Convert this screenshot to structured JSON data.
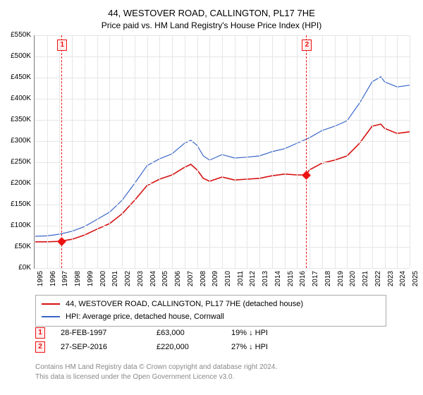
{
  "title_line1": "44, WESTOVER ROAD, CALLINGTON, PL17 7HE",
  "title_line2": "Price paid vs. HM Land Registry's House Price Index (HPI)",
  "chart": {
    "y": {
      "min": 0,
      "max": 550,
      "step": 50,
      "unit_prefix": "£",
      "unit_suffix": "K"
    },
    "x": {
      "min": 1995,
      "max": 2025,
      "step": 1
    },
    "grid_color": "#e6e6e6",
    "axis_color": "#888888",
    "series": [
      {
        "id": "subject",
        "color": "#d61111",
        "width": 1.6,
        "points": [
          [
            1995,
            62
          ],
          [
            1996,
            62
          ],
          [
            1997,
            63
          ],
          [
            1998,
            68
          ],
          [
            1999,
            78
          ],
          [
            2000,
            92
          ],
          [
            2001,
            105
          ],
          [
            2002,
            128
          ],
          [
            2003,
            160
          ],
          [
            2004,
            195
          ],
          [
            2005,
            210
          ],
          [
            2006,
            220
          ],
          [
            2007,
            238
          ],
          [
            2007.5,
            245
          ],
          [
            2008,
            232
          ],
          [
            2008.5,
            212
          ],
          [
            2009,
            205
          ],
          [
            2010,
            215
          ],
          [
            2011,
            208
          ],
          [
            2012,
            210
          ],
          [
            2013,
            212
          ],
          [
            2014,
            218
          ],
          [
            2015,
            222
          ],
          [
            2016,
            220
          ],
          [
            2016.7,
            220
          ],
          [
            2017,
            232
          ],
          [
            2018,
            248
          ],
          [
            2019,
            255
          ],
          [
            2020,
            265
          ],
          [
            2021,
            295
          ],
          [
            2022,
            335
          ],
          [
            2022.7,
            340
          ],
          [
            2023,
            330
          ],
          [
            2024,
            318
          ],
          [
            2025,
            322
          ]
        ]
      },
      {
        "id": "hpi",
        "color": "#3a66c8",
        "width": 1.2,
        "points": [
          [
            1995,
            75
          ],
          [
            1996,
            76
          ],
          [
            1997,
            80
          ],
          [
            1998,
            87
          ],
          [
            1999,
            98
          ],
          [
            2000,
            115
          ],
          [
            2001,
            132
          ],
          [
            2002,
            160
          ],
          [
            2003,
            200
          ],
          [
            2004,
            242
          ],
          [
            2005,
            258
          ],
          [
            2006,
            270
          ],
          [
            2007,
            295
          ],
          [
            2007.5,
            302
          ],
          [
            2008,
            290
          ],
          [
            2008.5,
            265
          ],
          [
            2009,
            255
          ],
          [
            2010,
            268
          ],
          [
            2011,
            260
          ],
          [
            2012,
            262
          ],
          [
            2013,
            265
          ],
          [
            2014,
            275
          ],
          [
            2015,
            282
          ],
          [
            2016,
            295
          ],
          [
            2017,
            308
          ],
          [
            2018,
            325
          ],
          [
            2019,
            335
          ],
          [
            2020,
            348
          ],
          [
            2021,
            390
          ],
          [
            2022,
            440
          ],
          [
            2022.7,
            452
          ],
          [
            2023,
            440
          ],
          [
            2024,
            428
          ],
          [
            2025,
            432
          ]
        ]
      }
    ],
    "sale_points": [
      {
        "year": 1997.16,
        "value": 63
      },
      {
        "year": 2016.73,
        "value": 220
      }
    ],
    "marker_color": "#e11",
    "marker_bg": "#ffeeee"
  },
  "legend": [
    {
      "color": "#d61111",
      "label": "44, WESTOVER ROAD, CALLINGTON, PL17 7HE (detached house)"
    },
    {
      "color": "#3a66c8",
      "label": "HPI: Average price, detached house, Cornwall"
    }
  ],
  "annotations": [
    {
      "n": "1",
      "date": "28-FEB-1997",
      "price": "£63,000",
      "delta": "19% ↓ HPI"
    },
    {
      "n": "2",
      "date": "27-SEP-2016",
      "price": "£220,000",
      "delta": "27% ↓ HPI"
    }
  ],
  "footer_line1": "Contains HM Land Registry data © Crown copyright and database right 2024.",
  "footer_line2": "This data is licensed under the Open Government Licence v3.0."
}
